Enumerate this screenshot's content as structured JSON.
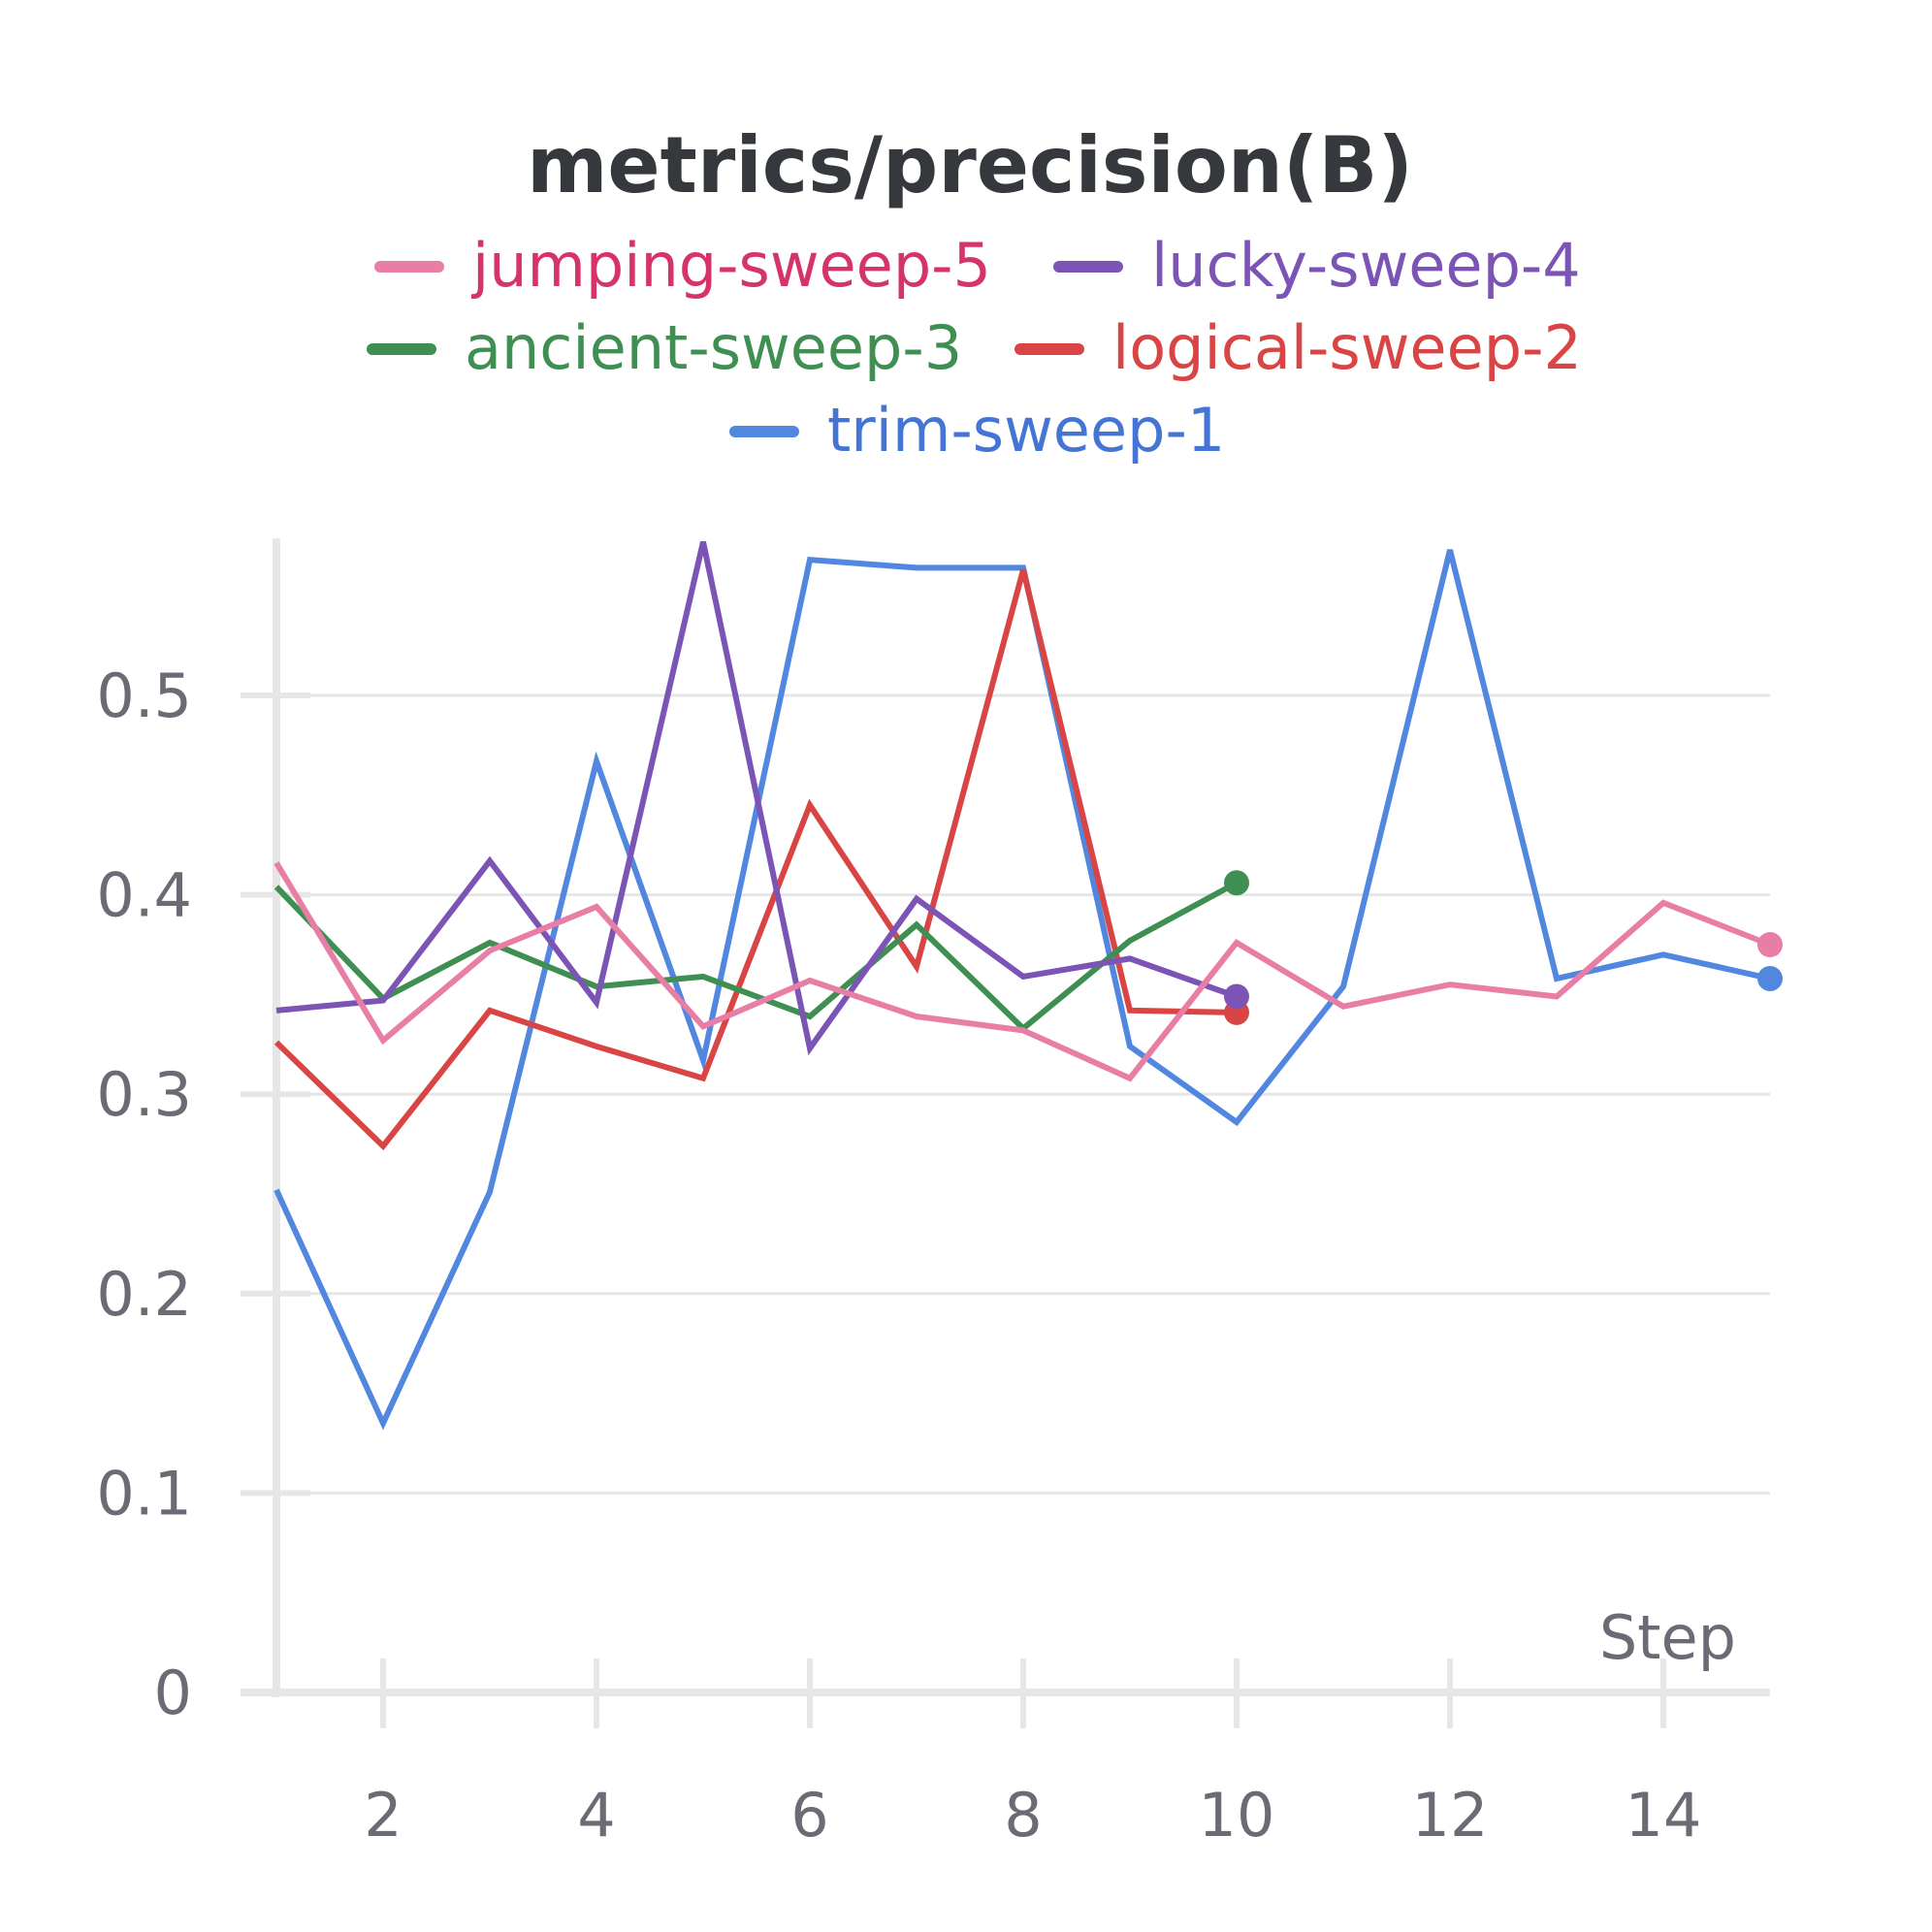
{
  "chart_data": {
    "type": "line",
    "title": "metrics/precision(B)",
    "xlabel": "Step",
    "ylabel": "",
    "xlim": [
      1,
      15
    ],
    "ylim": [
      0,
      0.58
    ],
    "x_ticks": [
      2,
      4,
      6,
      8,
      10,
      12,
      14
    ],
    "y_ticks": [
      0,
      0.1,
      0.2,
      0.3,
      0.4,
      0.5
    ],
    "grid": true,
    "legend_position": "top-center",
    "series": [
      {
        "name": "jumping-sweep-5",
        "color": "#e87ea6",
        "text_color": "#d6336c",
        "x": [
          1,
          2,
          3,
          4,
          5,
          6,
          7,
          8,
          9,
          10,
          11,
          12,
          13,
          14,
          15
        ],
        "y": [
          0.416,
          0.327,
          0.372,
          0.394,
          0.334,
          0.357,
          0.339,
          0.332,
          0.308,
          0.376,
          0.344,
          0.355,
          0.349,
          0.396,
          0.375
        ]
      },
      {
        "name": "lucky-sweep-4",
        "color": "#7b54b5",
        "text_color": "#7b54b5",
        "x": [
          1,
          2,
          3,
          4,
          5,
          6,
          7,
          8,
          9,
          10
        ],
        "y": [
          0.342,
          0.347,
          0.417,
          0.346,
          0.577,
          0.323,
          0.398,
          0.359,
          0.368,
          0.349
        ]
      },
      {
        "name": "ancient-sweep-3",
        "color": "#3f8f52",
        "text_color": "#3f8f52",
        "x": [
          1,
          2,
          3,
          4,
          5,
          6,
          7,
          8,
          9,
          10
        ],
        "y": [
          0.404,
          0.348,
          0.376,
          0.354,
          0.359,
          0.339,
          0.385,
          0.333,
          0.377,
          0.406
        ]
      },
      {
        "name": "logical-sweep-2",
        "color": "#d94545",
        "text_color": "#d94545",
        "x": [
          1,
          2,
          3,
          4,
          5,
          6,
          7,
          8,
          9,
          10
        ],
        "y": [
          0.326,
          0.274,
          0.342,
          0.324,
          0.308,
          0.445,
          0.364,
          0.563,
          0.342,
          0.341
        ]
      },
      {
        "name": "trim-sweep-1",
        "color": "#5287e0",
        "text_color": "#4474d4",
        "x": [
          1,
          2,
          3,
          4,
          5,
          6,
          7,
          8,
          9,
          10,
          11,
          12,
          13,
          14,
          15
        ],
        "y": [
          0.252,
          0.135,
          0.251,
          0.467,
          0.317,
          0.568,
          0.564,
          0.564,
          0.324,
          0.286,
          0.354,
          0.573,
          0.358,
          0.37,
          0.358
        ]
      }
    ]
  }
}
